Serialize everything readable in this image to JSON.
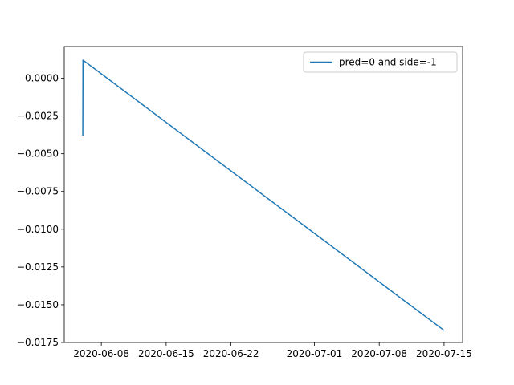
{
  "chart_data": {
    "type": "line",
    "title": "",
    "xlabel": "",
    "ylabel": "",
    "grid": false,
    "legend_position": "top-right",
    "x_ticks": [
      "2020-06-08",
      "2020-06-15",
      "2020-06-22",
      "2020-07-01",
      "2020-07-08",
      "2020-07-15"
    ],
    "y_ticks": [
      "0.0000",
      "−0.0025",
      "−0.0050",
      "−0.0075",
      "−0.0100",
      "−0.0125",
      "−0.0150",
      "−0.0175"
    ],
    "xlim": [
      "2020-06-04",
      "2020-07-17"
    ],
    "ylim": [
      -0.0175,
      0.0021
    ],
    "series": [
      {
        "name": "pred=0 and side=-1",
        "color": "#1f77b4",
        "x": [
          "2020-06-06",
          "2020-06-06",
          "2020-07-15"
        ],
        "y": [
          -0.0038,
          0.0012,
          -0.0167
        ]
      }
    ]
  }
}
